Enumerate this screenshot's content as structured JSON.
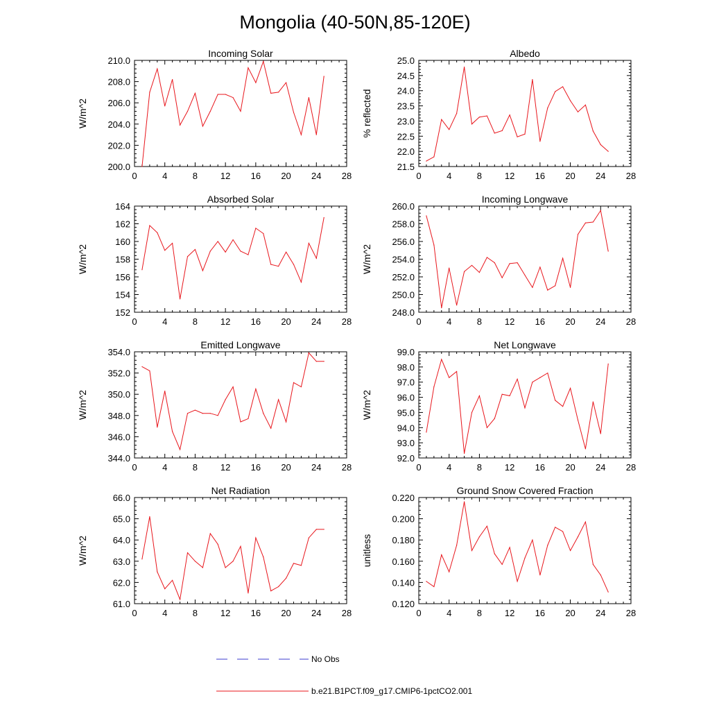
{
  "figure": {
    "title": "Mongolia (40-50N,85-120E)",
    "series_color": "#e8151b",
    "obs_color": "#3b3bcf"
  },
  "legend": {
    "items": [
      {
        "label": "No Obs",
        "style": "dashed",
        "color": "#3b3bcf"
      },
      {
        "label": "b.e21.B1PCT.f09_g17.CMIP6-1pctCO2.001",
        "style": "solid",
        "color": "#e8151b"
      }
    ]
  },
  "chart_data": [
    {
      "type": "line",
      "title": "Incoming Solar",
      "ylabel": "W/m^2",
      "xlim": [
        0,
        28
      ],
      "ylim": [
        200,
        210
      ],
      "xticks": [
        "0",
        "4",
        "8",
        "12",
        "16",
        "20",
        "24",
        "28"
      ],
      "yticks": [
        "200.0",
        "202.0",
        "204.0",
        "206.0",
        "208.0",
        "210.0"
      ],
      "x": [
        1,
        2,
        3,
        4,
        5,
        6,
        7,
        8,
        9,
        10,
        11,
        12,
        13,
        14,
        15,
        16,
        17,
        18,
        19,
        20,
        21,
        22,
        23,
        24,
        25
      ],
      "series": [
        {
          "name": "b.e21.B1PCT.f09_g17.CMIP6-1pctCO2.001",
          "values": [
            200.0,
            207.0,
            209.2,
            205.7,
            208.2,
            203.9,
            205.2,
            206.9,
            203.8,
            205.2,
            206.8,
            206.8,
            206.5,
            205.2,
            209.3,
            207.9,
            209.9,
            206.9,
            207.0,
            207.9,
            205.1,
            203.0,
            206.5,
            203.0,
            208.5
          ]
        }
      ]
    },
    {
      "type": "line",
      "title": "Albedo",
      "ylabel": "% reflected",
      "xlim": [
        0,
        28
      ],
      "ylim": [
        21.5,
        25.0
      ],
      "xticks": [
        "0",
        "4",
        "8",
        "12",
        "16",
        "20",
        "24",
        "28"
      ],
      "yticks": [
        "21.5",
        "22.0",
        "22.5",
        "23.0",
        "23.5",
        "24.0",
        "24.5",
        "25.0"
      ],
      "x": [
        1,
        2,
        3,
        4,
        5,
        6,
        7,
        8,
        9,
        10,
        11,
        12,
        13,
        14,
        15,
        16,
        17,
        18,
        19,
        20,
        21,
        22,
        23,
        24,
        25
      ],
      "series": [
        {
          "name": "b.e21.B1PCT.f09_g17.CMIP6-1pctCO2.001",
          "values": [
            21.68,
            21.82,
            23.05,
            22.72,
            23.25,
            24.78,
            22.9,
            23.13,
            23.17,
            22.6,
            22.68,
            23.2,
            22.48,
            22.57,
            24.37,
            22.33,
            23.43,
            23.97,
            24.13,
            23.67,
            23.3,
            23.53,
            22.67,
            22.22,
            22.0
          ]
        }
      ]
    },
    {
      "type": "line",
      "title": "Absorbed Solar",
      "ylabel": "W/m^2",
      "xlim": [
        0,
        28
      ],
      "ylim": [
        152,
        164
      ],
      "xticks": [
        "0",
        "4",
        "8",
        "12",
        "16",
        "20",
        "24",
        "28"
      ],
      "yticks": [
        "152",
        "154",
        "156",
        "158",
        "160",
        "162",
        "164"
      ],
      "x": [
        1,
        2,
        3,
        4,
        5,
        6,
        7,
        8,
        9,
        10,
        11,
        12,
        13,
        14,
        15,
        16,
        17,
        18,
        19,
        20,
        21,
        22,
        23,
        24,
        25
      ],
      "series": [
        {
          "name": "b.e21.B1PCT.f09_g17.CMIP6-1pctCO2.001",
          "values": [
            156.8,
            161.8,
            161.0,
            159.0,
            159.8,
            153.5,
            158.3,
            159.1,
            156.7,
            158.9,
            160.0,
            158.8,
            160.2,
            158.9,
            158.5,
            161.5,
            160.9,
            157.4,
            157.2,
            158.8,
            157.4,
            155.4,
            159.8,
            158.1,
            162.7
          ]
        }
      ]
    },
    {
      "type": "line",
      "title": "Incoming Longwave",
      "ylabel": "W/m^2",
      "xlim": [
        0,
        28
      ],
      "ylim": [
        248,
        260
      ],
      "xticks": [
        "0",
        "4",
        "8",
        "12",
        "16",
        "20",
        "24",
        "28"
      ],
      "yticks": [
        "248.0",
        "250.0",
        "252.0",
        "254.0",
        "256.0",
        "258.0",
        "260.0"
      ],
      "x": [
        1,
        2,
        3,
        4,
        5,
        6,
        7,
        8,
        9,
        10,
        11,
        12,
        13,
        14,
        15,
        16,
        17,
        18,
        19,
        20,
        21,
        22,
        23,
        24,
        25
      ],
      "series": [
        {
          "name": "b.e21.B1PCT.f09_g17.CMIP6-1pctCO2.001",
          "values": [
            258.9,
            255.6,
            248.5,
            253.0,
            248.8,
            252.6,
            253.3,
            252.5,
            254.2,
            253.6,
            251.9,
            253.5,
            253.6,
            252.2,
            250.8,
            253.1,
            250.5,
            251.0,
            254.1,
            250.8,
            256.8,
            258.1,
            258.2,
            259.5,
            254.9
          ]
        }
      ]
    },
    {
      "type": "line",
      "title": "Emitted Longwave",
      "ylabel": "W/m^2",
      "xlim": [
        0,
        28
      ],
      "ylim": [
        344,
        354
      ],
      "xticks": [
        "0",
        "4",
        "8",
        "12",
        "16",
        "20",
        "24",
        "28"
      ],
      "yticks": [
        "344.0",
        "346.0",
        "348.0",
        "350.0",
        "352.0",
        "354.0"
      ],
      "x": [
        1,
        2,
        3,
        4,
        5,
        6,
        7,
        8,
        9,
        10,
        11,
        12,
        13,
        14,
        15,
        16,
        17,
        18,
        19,
        20,
        21,
        22,
        23,
        24,
        25
      ],
      "series": [
        {
          "name": "b.e21.B1PCT.f09_g17.CMIP6-1pctCO2.001",
          "values": [
            352.6,
            352.2,
            346.9,
            350.3,
            346.5,
            344.8,
            348.2,
            348.5,
            348.2,
            348.2,
            348.0,
            349.5,
            350.7,
            347.4,
            347.7,
            350.5,
            348.2,
            346.8,
            349.5,
            347.4,
            351.1,
            350.7,
            353.9,
            353.1,
            353.1
          ]
        }
      ]
    },
    {
      "type": "line",
      "title": "Net Longwave",
      "ylabel": "W/m^2",
      "xlim": [
        0,
        28
      ],
      "ylim": [
        92,
        99
      ],
      "xticks": [
        "0",
        "4",
        "8",
        "12",
        "16",
        "20",
        "24",
        "28"
      ],
      "yticks": [
        "92.0",
        "93.0",
        "94.0",
        "95.0",
        "96.0",
        "97.0",
        "98.0",
        "99.0"
      ],
      "x": [
        1,
        2,
        3,
        4,
        5,
        6,
        7,
        8,
        9,
        10,
        11,
        12,
        13,
        14,
        15,
        16,
        17,
        18,
        19,
        20,
        21,
        22,
        23,
        24,
        25
      ],
      "series": [
        {
          "name": "b.e21.B1PCT.f09_g17.CMIP6-1pctCO2.001",
          "values": [
            93.7,
            96.7,
            98.5,
            97.3,
            97.7,
            92.3,
            95.0,
            96.1,
            94.0,
            94.6,
            96.2,
            96.1,
            97.2,
            95.3,
            97.0,
            97.3,
            97.6,
            95.8,
            95.4,
            96.6,
            94.5,
            92.6,
            95.7,
            93.6,
            98.2
          ]
        }
      ]
    },
    {
      "type": "line",
      "title": "Net Radiation",
      "ylabel": "W/m^2",
      "xlim": [
        0,
        28
      ],
      "ylim": [
        61,
        66
      ],
      "xticks": [
        "0",
        "4",
        "8",
        "12",
        "16",
        "20",
        "24",
        "28"
      ],
      "yticks": [
        "61.0",
        "62.0",
        "63.0",
        "64.0",
        "65.0",
        "66.0"
      ],
      "x": [
        1,
        2,
        3,
        4,
        5,
        6,
        7,
        8,
        9,
        10,
        11,
        12,
        13,
        14,
        15,
        16,
        17,
        18,
        19,
        20,
        21,
        22,
        23,
        24,
        25
      ],
      "series": [
        {
          "name": "b.e21.B1PCT.f09_g17.CMIP6-1pctCO2.001",
          "values": [
            63.1,
            65.1,
            62.5,
            61.7,
            62.1,
            61.2,
            63.4,
            63.0,
            62.7,
            64.3,
            63.8,
            62.7,
            63.0,
            63.7,
            61.5,
            64.1,
            63.2,
            61.6,
            61.8,
            62.2,
            62.9,
            62.8,
            64.1,
            64.5,
            64.5
          ]
        }
      ]
    },
    {
      "type": "line",
      "title": "Ground Snow Covered Fraction",
      "ylabel": "unitless",
      "xlim": [
        0,
        28
      ],
      "ylim": [
        0.12,
        0.22
      ],
      "xticks": [
        "0",
        "4",
        "8",
        "12",
        "16",
        "20",
        "24",
        "28"
      ],
      "yticks": [
        "0.120",
        "0.140",
        "0.160",
        "0.180",
        "0.200",
        "0.220"
      ],
      "x": [
        1,
        2,
        3,
        4,
        5,
        6,
        7,
        8,
        9,
        10,
        11,
        12,
        13,
        14,
        15,
        16,
        17,
        18,
        19,
        20,
        21,
        22,
        23,
        24,
        25
      ],
      "series": [
        {
          "name": "b.e21.B1PCT.f09_g17.CMIP6-1pctCO2.001",
          "values": [
            0.141,
            0.136,
            0.166,
            0.15,
            0.175,
            0.216,
            0.17,
            0.183,
            0.193,
            0.167,
            0.157,
            0.173,
            0.141,
            0.163,
            0.18,
            0.147,
            0.175,
            0.192,
            0.188,
            0.17,
            0.183,
            0.197,
            0.157,
            0.147,
            0.131
          ]
        }
      ]
    }
  ]
}
